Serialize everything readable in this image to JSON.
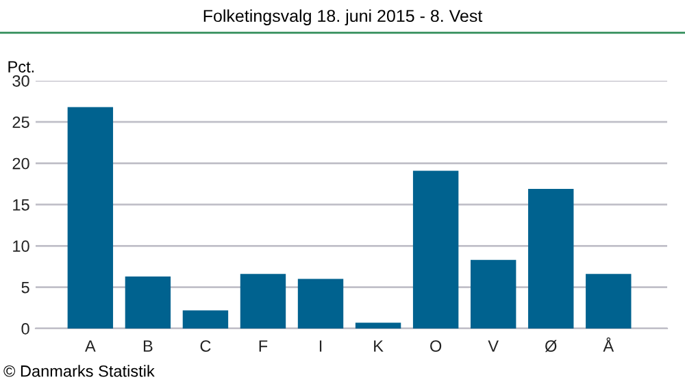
{
  "chart_data": {
    "type": "bar",
    "title": "Folketingsvalg 18. juni 2015 - 8. Vest",
    "ylabel": "Pct.",
    "categories": [
      "A",
      "B",
      "C",
      "F",
      "I",
      "K",
      "O",
      "V",
      "Ø",
      "Å"
    ],
    "values": [
      26.8,
      6.3,
      2.2,
      6.6,
      6.0,
      0.7,
      19.1,
      8.3,
      16.9,
      6.6
    ],
    "color": "#00628f",
    "ylim": [
      0,
      30
    ],
    "yticks": [
      0,
      5,
      10,
      15,
      20,
      25,
      30
    ],
    "grid": "y",
    "annotations": [
      "© Danmarks Statistik"
    ]
  }
}
